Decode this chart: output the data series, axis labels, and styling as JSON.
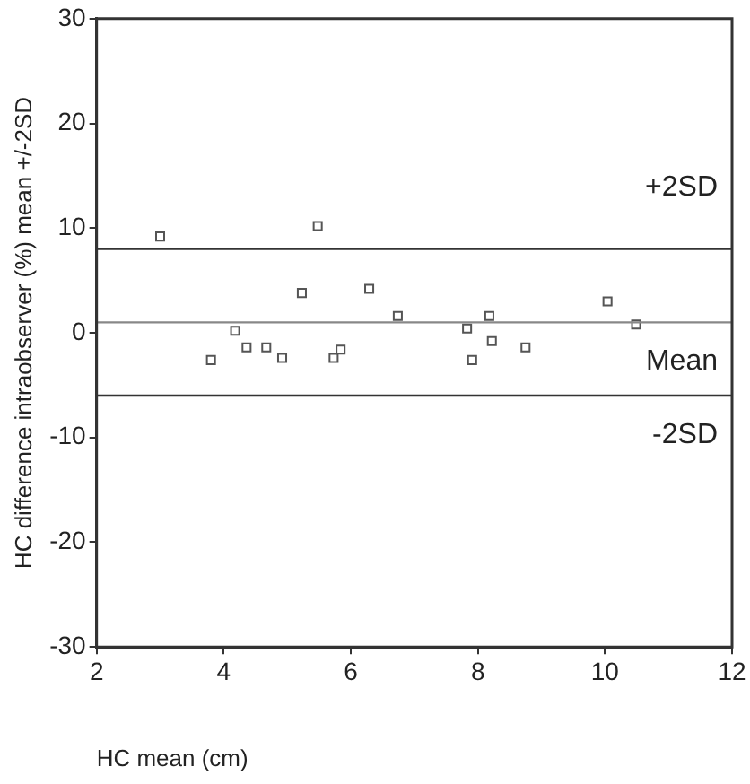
{
  "chart_data": {
    "type": "scatter",
    "xlabel": "HC mean (cm)",
    "ylabel": "HC difference intraobserver (%) mean +/-2SD",
    "xlim": [
      2,
      12
    ],
    "xticks": [
      2,
      4,
      6,
      8,
      10,
      12
    ],
    "ylim": [
      -30,
      30
    ],
    "yticks": [
      -30,
      -20,
      -10,
      0,
      10,
      20,
      30
    ],
    "series": [
      {
        "color": "#555555",
        "x": [
          3.0,
          5.48,
          5.23,
          6.29,
          6.74,
          10.04,
          10.49,
          4.18,
          4.36,
          4.67,
          3.8,
          4.92,
          5.73,
          5.84,
          7.83,
          7.91,
          8.18,
          8.22,
          8.75
        ],
        "values": [
          9.2,
          10.2,
          3.8,
          4.2,
          1.6,
          3.0,
          0.8,
          0.2,
          -1.4,
          -1.4,
          -2.6,
          -2.4,
          -2.4,
          -1.6,
          0.4,
          -2.6,
          1.6,
          -0.8,
          -1.4
        ]
      }
    ],
    "ref_lines": [
      {
        "axis": "y",
        "value": 8,
        "color": "#333333",
        "label": "+2SD"
      },
      {
        "axis": "y",
        "value": 1,
        "color": "#888888",
        "label": "Mean"
      },
      {
        "axis": "y",
        "value": -6,
        "color": "#333333",
        "label": "-2SD"
      }
    ],
    "marker": "square",
    "grid": false,
    "legend": false
  }
}
